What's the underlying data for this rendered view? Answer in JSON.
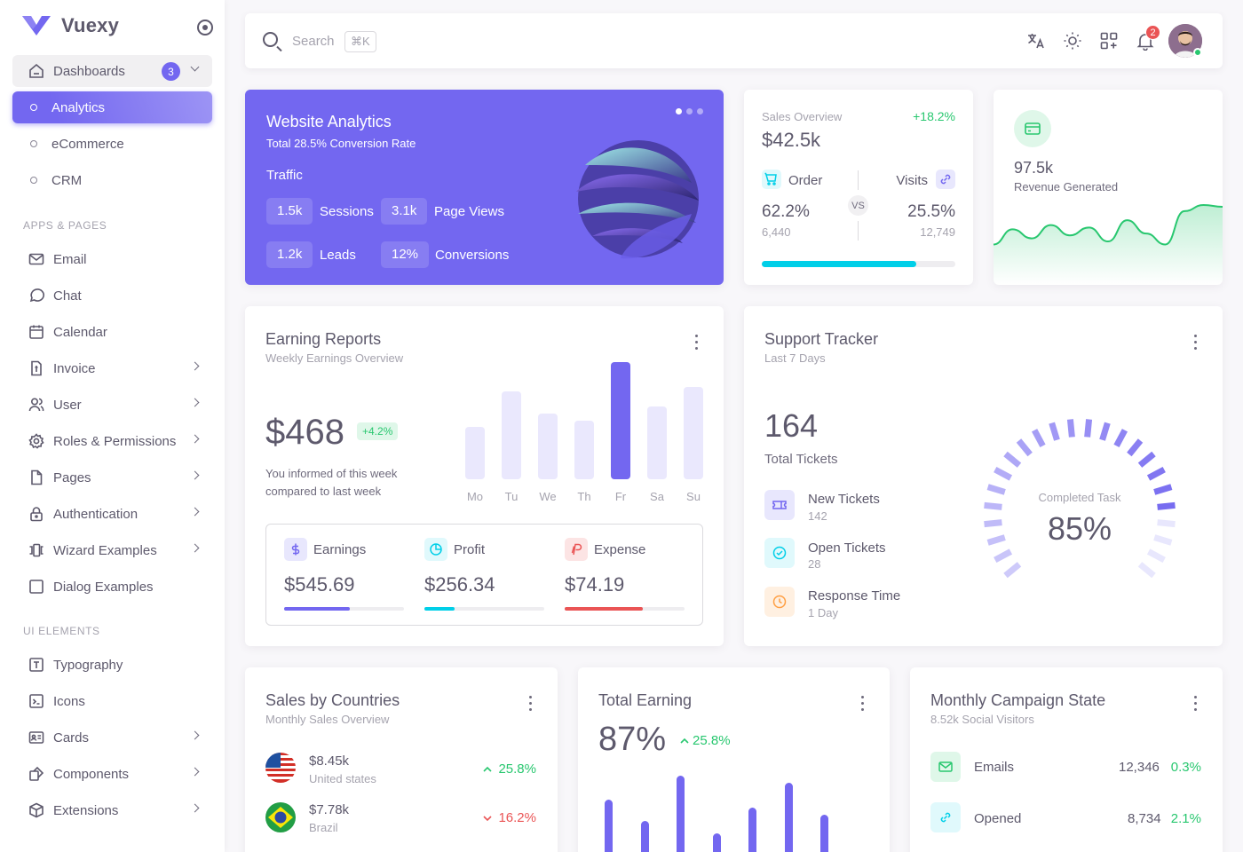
{
  "brand": {
    "name": "Vuexy"
  },
  "sidebar": {
    "dashboards": {
      "label": "Dashboards",
      "count": "3"
    },
    "sub_items": [
      "Analytics",
      "eCommerce",
      "CRM"
    ],
    "section_apps": "APPS & PAGES",
    "apps": [
      "Email",
      "Chat",
      "Calendar",
      "Invoice",
      "User",
      "Roles & Permissions",
      "Pages",
      "Authentication",
      "Wizard Examples",
      "Dialog Examples"
    ],
    "section_ui": "UI ELEMENTS",
    "ui": [
      "Typography",
      "Icons",
      "Cards",
      "Components",
      "Extensions"
    ]
  },
  "navbar": {
    "search_placeholder": "Search",
    "shortcut": "⌘K",
    "notifications": "2"
  },
  "website_analytics": {
    "title": "Website Analytics",
    "subtitle": "Total 28.5% Conversion Rate",
    "traffic_label": "Traffic",
    "stats": [
      {
        "value": "1.5k",
        "label": "Sessions"
      },
      {
        "value": "3.1k",
        "label": "Page Views"
      },
      {
        "value": "1.2k",
        "label": "Leads"
      },
      {
        "value": "12%",
        "label": "Conversions"
      }
    ]
  },
  "sales_overview": {
    "label": "Sales Overview",
    "change": "+18.2%",
    "value": "$42.5k",
    "order": {
      "label": "Order",
      "percent": "62.2%",
      "count": "6,440"
    },
    "visits": {
      "label": "Visits",
      "percent": "25.5%",
      "count": "12,749"
    },
    "vs": "VS",
    "progress": 0.8
  },
  "revenue": {
    "value": "97.5k",
    "label": "Revenue Generated",
    "trend": [
      30,
      55,
      40,
      62,
      45,
      58,
      35,
      70,
      48,
      30,
      85,
      95,
      92
    ]
  },
  "earning_reports": {
    "title": "Earning Reports",
    "subtitle": "Weekly Earnings Overview",
    "amount": "$468",
    "change": "+4.2%",
    "note_line1": "You informed of this week",
    "note_line2": "compared to last week",
    "days": [
      "Mo",
      "Tu",
      "We",
      "Th",
      "Fr",
      "Sa",
      "Su"
    ],
    "values": [
      45,
      75,
      56,
      50,
      100,
      62,
      79
    ],
    "active_index": 4,
    "stats": [
      {
        "label": "Earnings",
        "value": "$545.69",
        "progress": 0.55,
        "color": "#7367f0"
      },
      {
        "label": "Profit",
        "value": "$256.34",
        "progress": 0.25,
        "color": "#00cfe8"
      },
      {
        "label": "Expense",
        "value": "$74.19",
        "progress": 0.65,
        "color": "#ea5455"
      }
    ]
  },
  "support_tracker": {
    "title": "Support Tracker",
    "subtitle": "Last 7 Days",
    "total": "164",
    "total_label": "Total Tickets",
    "tickets": [
      {
        "label": "New Tickets",
        "value": "142"
      },
      {
        "label": "Open Tickets",
        "value": "28"
      },
      {
        "label": "Response Time",
        "value": "1 Day"
      }
    ],
    "gauge_label": "Completed Task",
    "gauge_value": "85%",
    "gauge_fraction": 0.85
  },
  "sales_countries": {
    "title": "Sales by Countries",
    "subtitle": "Monthly Sales Overview",
    "rows": [
      {
        "amount": "$8.45k",
        "country": "United states",
        "change": "25.8%",
        "direction": "up"
      },
      {
        "amount": "$7.78k",
        "country": "Brazil",
        "change": "16.2%",
        "direction": "down"
      }
    ]
  },
  "total_earning": {
    "title": "Total Earning",
    "value": "87%",
    "change": "25.8%",
    "bars": [
      70,
      48,
      95,
      36,
      62,
      88,
      55
    ]
  },
  "monthly_campaign": {
    "title": "Monthly Campaign State",
    "subtitle": "8.52k Social Visitors",
    "rows": [
      {
        "label": "Emails",
        "value": "12,346",
        "change": "0.3%"
      },
      {
        "label": "Opened",
        "value": "8,734",
        "change": "2.1%"
      }
    ]
  }
}
